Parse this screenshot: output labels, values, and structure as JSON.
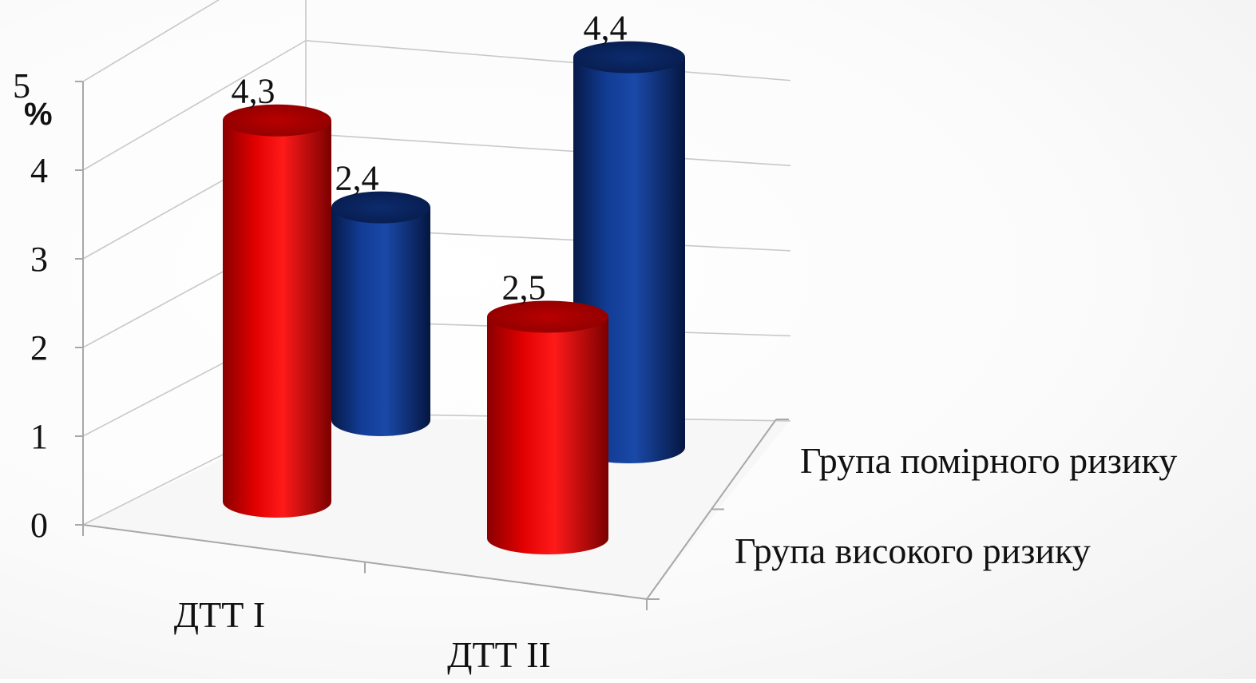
{
  "chart_data": {
    "type": "bar",
    "subtype": "3d-cylinder",
    "unit_label": "%",
    "categories": [
      "ДТТ І",
      "ДТТ ІІ"
    ],
    "series": [
      {
        "name": "Група високого  ризику",
        "color": "#c00000",
        "values": [
          4.3,
          2.5
        ],
        "labels": [
          "4,3",
          "2,5"
        ]
      },
      {
        "name": "Група помірного  ризику",
        "color": "#0b2e7a",
        "values": [
          2.4,
          4.4
        ],
        "labels": [
          "2,4",
          "4,4"
        ]
      }
    ],
    "ylim": [
      0,
      5
    ],
    "yticks": [
      "0",
      "1",
      "2",
      "3",
      "4",
      "5"
    ],
    "grid": true,
    "legend": "depth-axis labels (right)"
  }
}
